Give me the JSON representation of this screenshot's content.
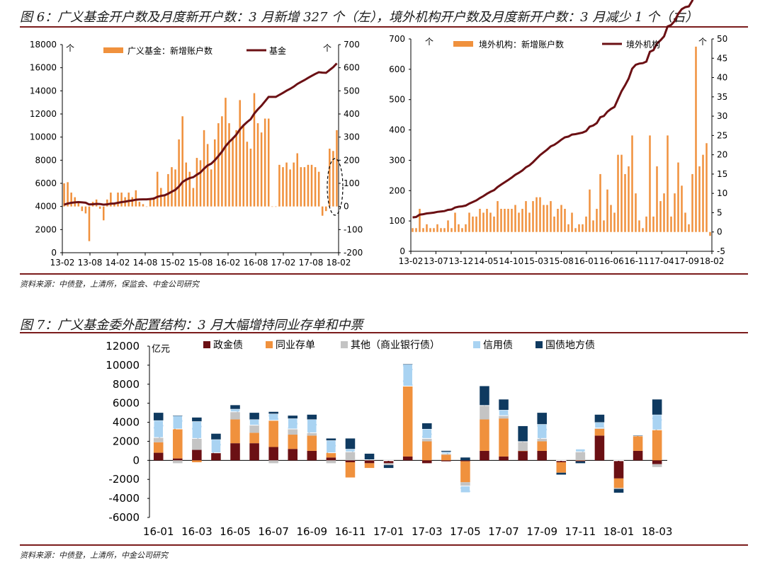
{
  "fig6": {
    "title": "图 6：广义基金开户数及月度新开户数：3 月新增 327 个（左），境外机构开户数及月度新开户数：3 月减少 1 个（右）",
    "source": "资料来源：中债登，上清所，保监会、中金公司研究"
  },
  "fig7": {
    "title": "图 7：广义基金委外配置结构：3 月大幅增持同业存单和中票",
    "source": "资料来源：中债登，上清所，中金公司研究"
  },
  "colors": {
    "orange": "#f0913d",
    "maroon": "#6b1014",
    "gray": "#c4c4c4",
    "lightblue": "#a9d3f2",
    "navy": "#0f3a60",
    "rule": "#7b1c1c"
  },
  "chart_data": [
    {
      "type": "bar",
      "name": "chart1",
      "legend": [
        "广义基金：新增账户数",
        "基金"
      ],
      "unit_label_left": "个",
      "unit_label_right": "个",
      "xticks": [
        "13-02",
        "13-08",
        "14-02",
        "14-08",
        "15-02",
        "15-08",
        "16-02",
        "16-08",
        "17-02",
        "17-08",
        "18-02"
      ],
      "ylim_left": [
        0,
        18000
      ],
      "yticks_left": [
        0,
        2000,
        4000,
        6000,
        8000,
        10000,
        12000,
        14000,
        16000,
        18000
      ],
      "ylim_right": [
        -200,
        700
      ],
      "yticks_right": [
        -200,
        -100,
        0,
        100,
        200,
        300,
        400,
        500,
        600,
        700
      ],
      "bar_axis": "right",
      "bars": [
        100,
        105,
        60,
        40,
        20,
        -20,
        -30,
        -150,
        20,
        30,
        -10,
        -60,
        30,
        60,
        10,
        60,
        60,
        40,
        60,
        40,
        70,
        20,
        10,
        0,
        30,
        40,
        150,
        80,
        50,
        140,
        170,
        160,
        290,
        390,
        190,
        150,
        80,
        210,
        200,
        330,
        270,
        160,
        290,
        360,
        390,
        470,
        360,
        300,
        330,
        460,
        350,
        280,
        250,
        490,
        360,
        320,
        380,
        380,
        0,
        0,
        180,
        170,
        190,
        160,
        190,
        230,
        170,
        170,
        180,
        180,
        170,
        150,
        -40,
        -20,
        250,
        240,
        330
      ]
    },
    {
      "type": "bar",
      "name": "chart2",
      "legend": [
        "境外机构：新增账户数",
        "境外机构"
      ],
      "unit_label_left": "个",
      "unit_label_right": "个",
      "xticks": [
        "13-02",
        "13-07",
        "13-12",
        "14-05",
        "14-10",
        "15-03",
        "15-08",
        "16-01",
        "16-06",
        "16-11",
        "17-04",
        "17-09",
        "18-02"
      ],
      "ylim_left": [
        0,
        700
      ],
      "yticks_left": [
        0,
        100,
        200,
        300,
        400,
        500,
        600,
        700
      ],
      "ylim_right": [
        -5,
        50
      ],
      "yticks_right": [
        -5,
        0,
        5,
        10,
        15,
        20,
        25,
        30,
        35,
        40,
        45,
        50
      ],
      "bar_axis": "right",
      "bars": [
        1,
        1,
        6,
        1,
        2,
        1,
        1,
        2,
        1,
        1,
        3,
        1,
        5,
        2,
        1,
        2,
        5,
        4,
        4,
        6,
        5,
        6,
        5,
        4,
        8,
        6,
        6,
        6,
        6,
        7,
        5,
        6,
        8,
        5,
        8,
        9,
        9,
        7,
        7,
        8,
        4,
        6,
        7,
        6,
        2,
        5,
        1,
        2,
        2,
        4,
        11,
        3,
        6,
        15,
        3,
        11,
        7,
        5,
        20,
        20,
        15,
        17,
        25,
        10,
        3,
        1,
        4,
        25,
        4,
        17,
        8,
        10,
        25,
        4,
        10,
        18,
        12,
        5,
        2,
        15,
        48,
        17,
        20,
        23,
        -1
      ]
    },
    {
      "type": "bar",
      "name": "chart3",
      "stacked": true,
      "unit_label": "亿元",
      "legend": [
        "政金债",
        "同业存单",
        "其他（商业银行债）",
        "信用债",
        "国债地方债"
      ],
      "xticks": [
        "16-01",
        "16-03",
        "16-05",
        "16-07",
        "16-09",
        "16-11",
        "17-01",
        "17-03",
        "17-05",
        "17-07",
        "17-09",
        "17-11",
        "18-01",
        "18-03"
      ],
      "categories": [
        "16-01",
        "16-02",
        "16-03",
        "16-04",
        "16-05",
        "16-06",
        "16-07",
        "16-08",
        "16-09",
        "16-10",
        "16-11",
        "16-12",
        "17-01",
        "17-02",
        "17-03",
        "17-04",
        "17-05",
        "17-06",
        "17-07",
        "17-08",
        "17-09",
        "17-10",
        "17-11",
        "17-12",
        "18-01",
        "18-02",
        "18-03"
      ],
      "ylim": [
        -6000,
        12000
      ],
      "yticks": [
        -6000,
        -4000,
        -2000,
        0,
        2000,
        4000,
        6000,
        8000,
        10000,
        12000
      ],
      "series": [
        {
          "name": "政金债",
          "values": [
            800,
            200,
            1100,
            800,
            1800,
            1800,
            1400,
            1200,
            1000,
            300,
            -200,
            -300,
            -300,
            400,
            -300,
            -100,
            -100,
            1000,
            400,
            1000,
            1000,
            -200,
            -100,
            2600,
            -1900,
            1000,
            -400
          ]
        },
        {
          "name": "同业存单",
          "values": [
            1100,
            3100,
            -200,
            0,
            2500,
            1100,
            2800,
            1500,
            1600,
            500,
            -1600,
            -500,
            0,
            7400,
            2000,
            600,
            -2200,
            3300,
            4000,
            0,
            1000,
            -1100,
            0,
            700,
            -1000,
            1600,
            3200
          ]
        },
        {
          "name": "其他（商业银行债）",
          "values": [
            500,
            -300,
            1200,
            0,
            800,
            800,
            -300,
            600,
            300,
            -300,
            900,
            100,
            -200,
            0,
            300,
            100,
            -400,
            1500,
            300,
            1000,
            300,
            0,
            900,
            100,
            -100,
            0,
            -300
          ]
        },
        {
          "name": "信用债",
          "values": [
            1800,
            1400,
            1800,
            1400,
            300,
            600,
            700,
            1100,
            1400,
            1300,
            300,
            0,
            0,
            2300,
            1000,
            200,
            -700,
            0,
            600,
            0,
            1500,
            0,
            300,
            600,
            0,
            0,
            1600
          ]
        },
        {
          "name": "国债地方债",
          "values": [
            800,
            0,
            400,
            600,
            400,
            700,
            200,
            300,
            500,
            200,
            1100,
            600,
            -300,
            0,
            600,
            100,
            300,
            2000,
            1100,
            1600,
            1200,
            -200,
            -200,
            800,
            -400,
            0,
            1600
          ]
        }
      ]
    }
  ]
}
